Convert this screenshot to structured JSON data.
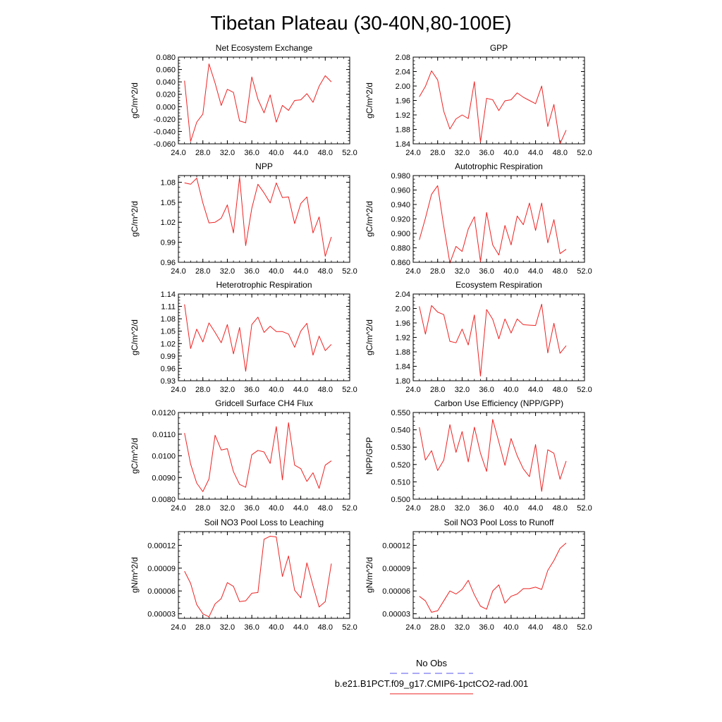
{
  "figure": {
    "title": "Tibetan Plateau (30-40N,80-100E)",
    "legend": [
      {
        "label": "No Obs",
        "color": "#5555ee",
        "dash": true
      },
      {
        "label": "b.e21.B1PCT.f09_g17.CMIP6-1pctCO2-rad.001",
        "color": "#ee2222",
        "dash": false
      }
    ]
  },
  "chart_data": [
    {
      "type": "line",
      "title": "Net Ecosystem Exchange",
      "ylabel": "gC/m^2/d",
      "xlim": [
        24,
        52
      ],
      "xticks": [
        "24.0",
        "28.0",
        "32.0",
        "36.0",
        "40.0",
        "44.0",
        "48.0",
        "52.0"
      ],
      "ylim": [
        -0.06,
        0.08
      ],
      "yticks": [
        "-0.060",
        "-0.040",
        "-0.020",
        "0.000",
        "0.020",
        "0.040",
        "0.060",
        "0.080"
      ],
      "series": [
        {
          "color": "#ee2222",
          "x": [
            25,
            26,
            27,
            28,
            29,
            30,
            31,
            32,
            33,
            34,
            35,
            36,
            37,
            38,
            39,
            40,
            41,
            42,
            43,
            44,
            45,
            46,
            47,
            48,
            49
          ],
          "y": [
            0.042,
            -0.056,
            -0.025,
            -0.012,
            0.069,
            0.038,
            0.002,
            0.028,
            0.023,
            -0.023,
            -0.026,
            0.048,
            0.012,
            -0.01,
            0.019,
            -0.025,
            0.002,
            -0.006,
            0.01,
            0.011,
            0.021,
            0.007,
            0.033,
            0.05,
            0.04
          ]
        }
      ]
    },
    {
      "type": "line",
      "title": "GPP",
      "ylabel": "gC/m^2/d",
      "xlim": [
        24,
        52
      ],
      "xticks": [
        "24.0",
        "28.0",
        "32.0",
        "36.0",
        "40.0",
        "44.0",
        "48.0",
        "52.0"
      ],
      "ylim": [
        1.84,
        2.08
      ],
      "yticks": [
        "1.84",
        "1.88",
        "1.92",
        "1.96",
        "2.00",
        "2.04",
        "2.08"
      ],
      "series": [
        {
          "color": "#ee2222",
          "x": [
            25,
            26,
            27,
            28,
            29,
            30,
            31,
            32,
            33,
            34,
            35,
            36,
            37,
            38,
            39,
            40,
            41,
            42,
            43,
            44,
            45,
            46,
            47,
            48,
            49
          ],
          "y": [
            1.97,
            1.999,
            2.042,
            2.017,
            1.93,
            1.881,
            1.909,
            1.92,
            1.91,
            2.012,
            1.845,
            1.966,
            1.962,
            1.932,
            1.959,
            1.962,
            1.981,
            1.969,
            1.96,
            1.951,
            2.0,
            1.888,
            1.949,
            1.84,
            1.878
          ]
        }
      ]
    },
    {
      "type": "line",
      "title": "NPP",
      "ylabel": "gC/m^2/d",
      "xlim": [
        24,
        52
      ],
      "xticks": [
        "24.0",
        "28.0",
        "32.0",
        "36.0",
        "40.0",
        "44.0",
        "48.0",
        "52.0"
      ],
      "ylim": [
        0.96,
        1.09
      ],
      "yticks": [
        "0.96",
        "0.99",
        "1.02",
        "1.05",
        "1.08"
      ],
      "series": [
        {
          "color": "#ee2222",
          "x": [
            25,
            26,
            27,
            28,
            29,
            30,
            31,
            32,
            33,
            34,
            35,
            36,
            37,
            38,
            39,
            40,
            41,
            42,
            43,
            44,
            45,
            46,
            47,
            48,
            49
          ],
          "y": [
            1.079,
            1.077,
            1.086,
            1.049,
            1.019,
            1.02,
            1.026,
            1.046,
            1.004,
            1.088,
            0.985,
            1.041,
            1.077,
            1.064,
            1.049,
            1.079,
            1.057,
            1.058,
            1.018,
            1.048,
            1.058,
            1.004,
            1.028,
            0.969,
            0.998
          ]
        }
      ]
    },
    {
      "type": "line",
      "title": "Autotrophic Respiration",
      "ylabel": "gC/m^2/d",
      "xlim": [
        24,
        52
      ],
      "xticks": [
        "24.0",
        "28.0",
        "32.0",
        "36.0",
        "40.0",
        "44.0",
        "48.0",
        "52.0"
      ],
      "ylim": [
        0.86,
        0.98
      ],
      "yticks": [
        "0.860",
        "0.880",
        "0.900",
        "0.920",
        "0.940",
        "0.960",
        "0.980"
      ],
      "series": [
        {
          "color": "#ee2222",
          "x": [
            25,
            26,
            27,
            28,
            29,
            30,
            31,
            32,
            33,
            34,
            35,
            36,
            37,
            38,
            39,
            40,
            41,
            42,
            43,
            44,
            45,
            46,
            47,
            48,
            49
          ],
          "y": [
            0.891,
            0.921,
            0.954,
            0.966,
            0.91,
            0.859,
            0.882,
            0.875,
            0.906,
            0.923,
            0.861,
            0.929,
            0.884,
            0.87,
            0.911,
            0.884,
            0.924,
            0.912,
            0.942,
            0.904,
            0.942,
            0.887,
            0.919,
            0.872,
            0.878
          ]
        }
      ]
    },
    {
      "type": "line",
      "title": "Heterotrophic Respiration",
      "ylabel": "gC/m^2/d",
      "xlim": [
        24,
        52
      ],
      "xticks": [
        "24.0",
        "28.0",
        "32.0",
        "36.0",
        "40.0",
        "44.0",
        "48.0",
        "52.0"
      ],
      "ylim": [
        0.93,
        1.14
      ],
      "yticks": [
        "0.93",
        "0.96",
        "0.99",
        "1.02",
        "1.05",
        "1.08",
        "1.11",
        "1.14"
      ],
      "series": [
        {
          "color": "#ee2222",
          "x": [
            25,
            26,
            27,
            28,
            29,
            30,
            31,
            32,
            33,
            34,
            35,
            36,
            37,
            38,
            39,
            40,
            41,
            42,
            43,
            44,
            45,
            46,
            47,
            48,
            49
          ],
          "y": [
            1.115,
            1.008,
            1.055,
            1.024,
            1.07,
            1.047,
            1.022,
            1.066,
            0.995,
            1.059,
            0.953,
            1.066,
            1.084,
            1.047,
            1.062,
            1.049,
            1.049,
            1.043,
            1.011,
            1.05,
            1.069,
            0.992,
            1.038,
            1.003,
            1.018
          ]
        }
      ]
    },
    {
      "type": "line",
      "title": "Ecosystem Respiration",
      "ylabel": "gC/m^2/d",
      "xlim": [
        24,
        52
      ],
      "xticks": [
        "24.0",
        "28.0",
        "32.0",
        "36.0",
        "40.0",
        "44.0",
        "48.0",
        "52.0"
      ],
      "ylim": [
        1.8,
        2.04
      ],
      "yticks": [
        "1.80",
        "1.84",
        "1.88",
        "1.92",
        "1.96",
        "2.00",
        "2.04"
      ],
      "series": [
        {
          "color": "#ee2222",
          "x": [
            25,
            26,
            27,
            28,
            29,
            30,
            31,
            32,
            33,
            34,
            35,
            36,
            37,
            38,
            39,
            40,
            41,
            42,
            43,
            44,
            45,
            46,
            47,
            48,
            49
          ],
          "y": [
            2.006,
            1.929,
            2.008,
            1.99,
            1.983,
            1.909,
            1.905,
            1.943,
            1.899,
            1.982,
            1.813,
            1.997,
            1.97,
            1.916,
            1.971,
            1.932,
            1.971,
            1.955,
            1.954,
            1.953,
            2.012,
            1.877,
            1.959,
            1.876,
            1.897
          ]
        }
      ]
    },
    {
      "type": "line",
      "title": "Gridcell Surface CH4 Flux",
      "ylabel": "gC/m^2/d",
      "xlim": [
        24,
        52
      ],
      "xticks": [
        "24.0",
        "28.0",
        "32.0",
        "36.0",
        "40.0",
        "44.0",
        "48.0",
        "52.0"
      ],
      "ylim": [
        0.008,
        0.012
      ],
      "yticks": [
        "0.0080",
        "0.0090",
        "0.0100",
        "0.0110",
        "0.0120"
      ],
      "series": [
        {
          "color": "#ee2222",
          "x": [
            25,
            26,
            27,
            28,
            29,
            30,
            31,
            32,
            33,
            34,
            35,
            36,
            37,
            38,
            39,
            40,
            41,
            42,
            43,
            44,
            45,
            46,
            47,
            48,
            49
          ],
          "y": [
            0.01105,
            0.00962,
            0.00874,
            0.00835,
            0.00893,
            0.01095,
            0.01027,
            0.01033,
            0.00927,
            0.00868,
            0.00855,
            0.01005,
            0.01025,
            0.01018,
            0.00965,
            0.01135,
            0.00889,
            0.01153,
            0.00957,
            0.00941,
            0.00882,
            0.00922,
            0.0085,
            0.00957,
            0.00977
          ]
        }
      ]
    },
    {
      "type": "line",
      "title": "Carbon Use Efficiency (NPP/GPP)",
      "ylabel": "NPP/GPP",
      "xlim": [
        24,
        52
      ],
      "xticks": [
        "24.0",
        "28.0",
        "32.0",
        "36.0",
        "40.0",
        "44.0",
        "48.0",
        "52.0"
      ],
      "ylim": [
        0.5,
        0.55
      ],
      "yticks": [
        "0.500",
        "0.510",
        "0.520",
        "0.530",
        "0.540",
        "0.550"
      ],
      "series": [
        {
          "color": "#ee2222",
          "x": [
            25,
            26,
            27,
            28,
            29,
            30,
            31,
            32,
            33,
            34,
            35,
            36,
            37,
            38,
            39,
            40,
            41,
            42,
            43,
            44,
            45,
            46,
            47,
            48,
            49
          ],
          "y": [
            0.5415,
            0.5225,
            0.528,
            0.5165,
            0.5225,
            0.543,
            0.527,
            0.539,
            0.5215,
            0.5415,
            0.5265,
            0.516,
            0.546,
            0.533,
            0.5195,
            0.535,
            0.525,
            0.5175,
            0.513,
            0.5315,
            0.5045,
            0.5285,
            0.5265,
            0.5115,
            0.522
          ]
        }
      ]
    },
    {
      "type": "line",
      "title": "Soil NO3 Pool Loss to Leaching",
      "ylabel": "gN/m^2/d",
      "xlim": [
        24,
        52
      ],
      "xticks": [
        "24.0",
        "28.0",
        "32.0",
        "36.0",
        "40.0",
        "44.0",
        "48.0",
        "52.0"
      ],
      "ylim": [
        2.4e-05,
        0.000138
      ],
      "yticks": [
        "0.00003",
        "0.00006",
        "0.00009",
        "0.00012"
      ],
      "ytick_values": [
        3e-05,
        6e-05,
        9e-05,
        0.00012
      ],
      "series": [
        {
          "color": "#ee2222",
          "x": [
            25,
            26,
            27,
            28,
            29,
            30,
            31,
            32,
            33,
            34,
            35,
            36,
            37,
            38,
            39,
            40,
            41,
            42,
            43,
            44,
            45,
            46,
            47,
            48,
            49
          ],
          "y": [
            8.6e-05,
            7e-05,
            4.2e-05,
            3e-05,
            2.6e-05,
            4.3e-05,
            5e-05,
            7.1e-05,
            6.6e-05,
            4.6e-05,
            4.7e-05,
            5.7e-05,
            5.8e-05,
            0.000128,
            0.000132,
            0.000131,
            7.9e-05,
            0.000106,
            6.1e-05,
            5.1e-05,
            9.7e-05,
            6.7e-05,
            3.9e-05,
            4.6e-05,
            9.6e-05
          ]
        }
      ]
    },
    {
      "type": "line",
      "title": "Soil NO3 Pool Loss to Runoff",
      "ylabel": "gN/m^2/d",
      "xlim": [
        24,
        52
      ],
      "xticks": [
        "24.0",
        "28.0",
        "32.0",
        "36.0",
        "40.0",
        "44.0",
        "48.0",
        "52.0"
      ],
      "ylim": [
        2.4e-05,
        0.000138
      ],
      "yticks": [
        "0.00003",
        "0.00006",
        "0.00009",
        "0.00012"
      ],
      "ytick_values": [
        3e-05,
        6e-05,
        9e-05,
        0.00012
      ],
      "series": [
        {
          "color": "#ee2222",
          "x": [
            25,
            26,
            27,
            28,
            29,
            30,
            31,
            32,
            33,
            34,
            35,
            36,
            37,
            38,
            39,
            40,
            41,
            42,
            43,
            44,
            45,
            46,
            47,
            48,
            49
          ],
          "y": [
            5.3e-05,
            4.7e-05,
            3.2e-05,
            3.4e-05,
            4.7e-05,
            6e-05,
            5.6e-05,
            6.2e-05,
            7.4e-05,
            5.5e-05,
            4e-05,
            3.6e-05,
            6e-05,
            6.8e-05,
            4.4e-05,
            5.3e-05,
            5.6e-05,
            6.3e-05,
            6.3e-05,
            6.5e-05,
            6.2e-05,
            8.7e-05,
            0.0001,
            0.000116,
            0.000123
          ]
        }
      ]
    }
  ]
}
